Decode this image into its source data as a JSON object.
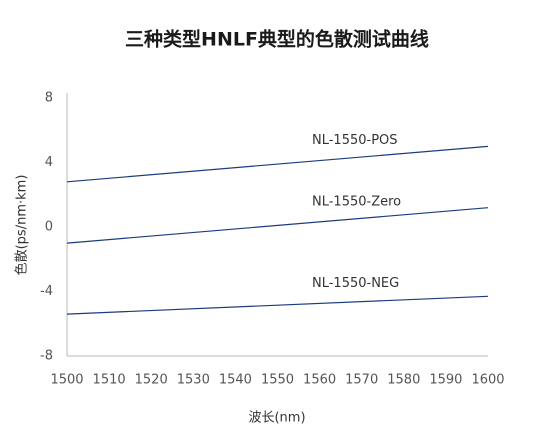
{
  "colors": {
    "axis": "#b8b8b8",
    "background": "#ffffff"
  },
  "chart_data": {
    "type": "line",
    "title": "三种类型HNLF典型的色散测试曲线",
    "xlabel": "波长(nm)",
    "ylabel": "色散(ps/nm·km)",
    "xlim": [
      1500,
      1600
    ],
    "ylim": [
      -8,
      8
    ],
    "x_ticks": [
      1500,
      1510,
      1520,
      1530,
      1540,
      1550,
      1560,
      1570,
      1580,
      1590,
      1600
    ],
    "y_ticks": [
      8,
      4,
      0,
      -4,
      -8
    ],
    "grid": false,
    "x": [
      1500,
      1600
    ],
    "series": [
      {
        "name": "NL-1550-POS",
        "values": [
          2.8,
          5.0
        ],
        "color": "#1d3c7d"
      },
      {
        "name": "NL-1550-Zero",
        "values": [
          -1.0,
          1.2
        ],
        "color": "#1d3c7d"
      },
      {
        "name": "NL-1550-NEG",
        "values": [
          -5.4,
          -4.3
        ],
        "color": "#1d3c7d"
      }
    ]
  }
}
